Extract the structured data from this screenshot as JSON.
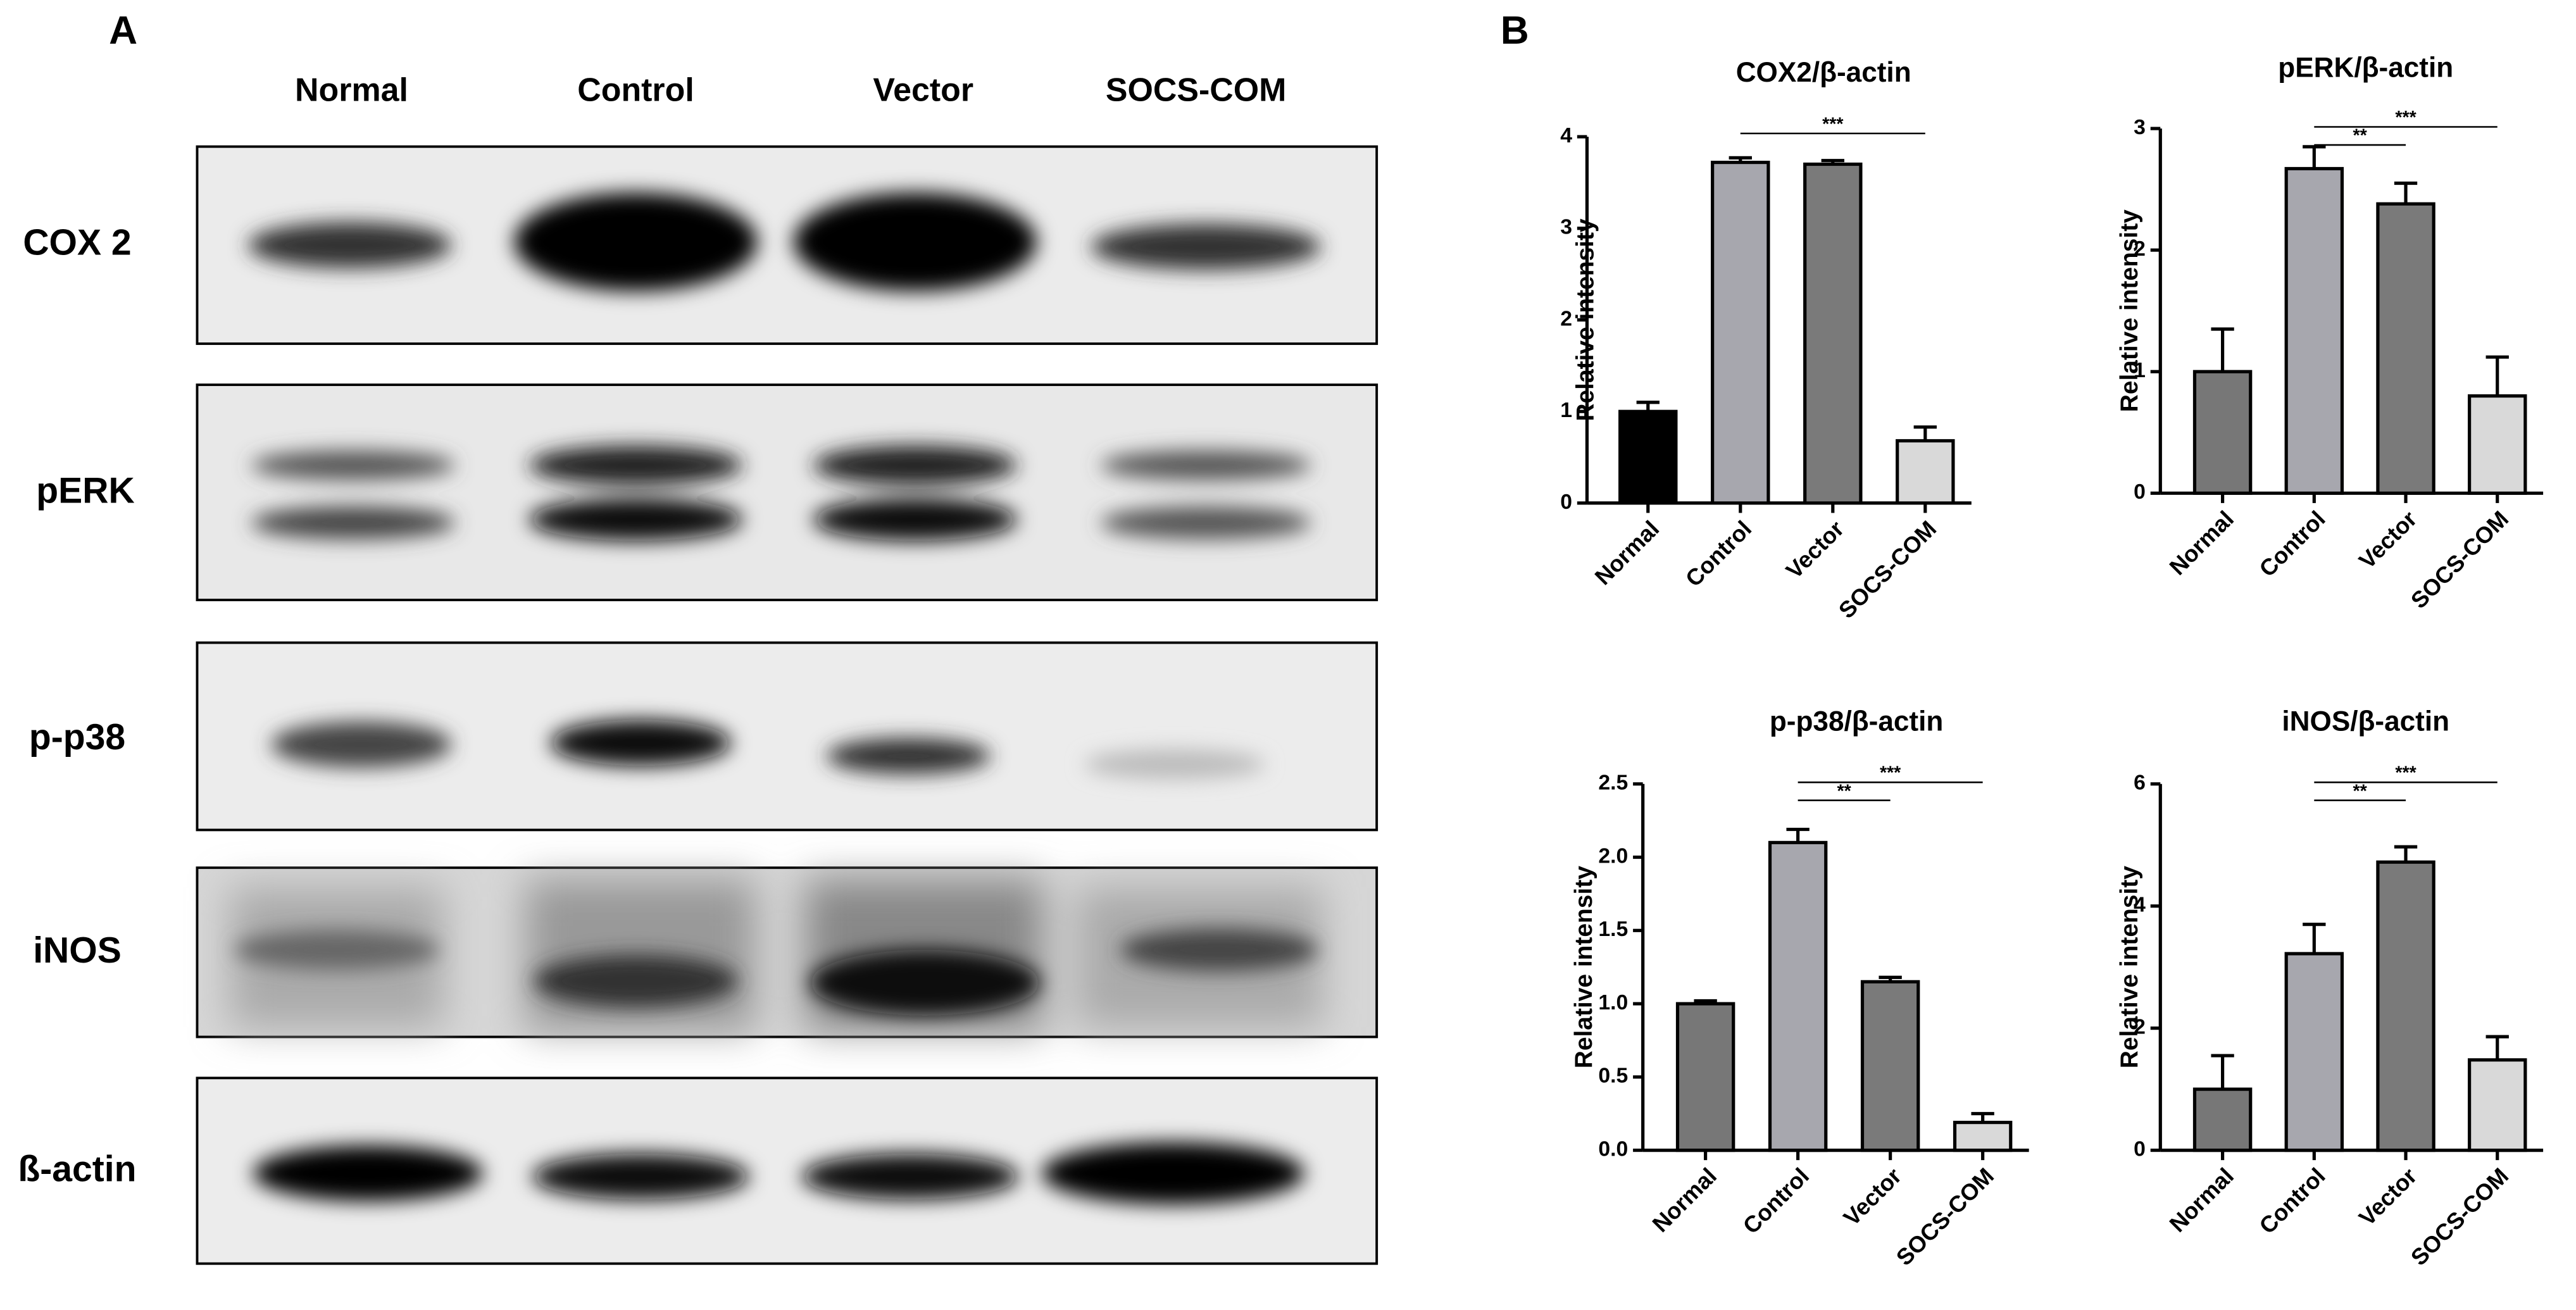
{
  "panel_a": {
    "label": "A",
    "lanes": [
      "Normal",
      "Control",
      "Vector",
      "SOCS-COM"
    ],
    "blots": [
      "COX 2",
      "pERK",
      "p-p38",
      "iNOS",
      "ß-actin"
    ]
  },
  "panel_b": {
    "label": "B"
  },
  "chart_data": [
    {
      "type": "bar",
      "title": "COX2/β-actin",
      "y_label": "Relative intensity",
      "categories": [
        "Normal",
        "Control",
        "Vector",
        "SOCS-COM"
      ],
      "values": [
        1.0,
        3.72,
        3.7,
        0.68
      ],
      "errors": [
        0.1,
        0.05,
        0.04,
        0.15
      ],
      "colors": [
        "#000000",
        "#a7a7ae",
        "#7a7a7a",
        "#d9d9d9"
      ],
      "ylim": [
        0,
        4
      ],
      "yticks": [
        0,
        1,
        2,
        3,
        4
      ],
      "annotations": [
        {
          "text": "***",
          "from": "Control",
          "to": "SOCS-COM"
        }
      ]
    },
    {
      "type": "bar",
      "title": "pERK/β-actin",
      "y_label": "Relative intensity",
      "categories": [
        "Normal",
        "Control",
        "Vector",
        "SOCS-COM"
      ],
      "values": [
        1.0,
        2.67,
        2.38,
        0.8
      ],
      "errors": [
        0.35,
        0.18,
        0.17,
        0.32
      ],
      "colors": [
        "#777777",
        "#a7a7ae",
        "#7a7a7a",
        "#d9d9d9"
      ],
      "ylim": [
        0,
        3
      ],
      "yticks": [
        0,
        1,
        2,
        3
      ],
      "annotations": [
        {
          "text": "**",
          "from": "Control",
          "to": "Vector"
        },
        {
          "text": "***",
          "from": "Control",
          "to": "SOCS-COM"
        }
      ]
    },
    {
      "type": "bar",
      "title": "p-p38/β-actin",
      "y_label": "Relative intensity",
      "categories": [
        "Normal",
        "Control",
        "Vector",
        "SOCS-COM"
      ],
      "values": [
        1.0,
        2.1,
        1.15,
        0.19
      ],
      "errors": [
        0.02,
        0.09,
        0.03,
        0.06
      ],
      "colors": [
        "#777777",
        "#a7a7ae",
        "#7a7a7a",
        "#d9d9d9"
      ],
      "ylim": [
        0,
        2.5
      ],
      "yticks": [
        {
          "value": 0,
          "label": "0.0"
        },
        0.5,
        {
          "value": 1,
          "label": "1.0"
        },
        1.5,
        {
          "value": 2,
          "label": "2.0"
        },
        2.5
      ],
      "annotations": [
        {
          "text": "**",
          "from": "Control",
          "to": "Vector"
        },
        {
          "text": "***",
          "from": "Control",
          "to": "SOCS-COM"
        }
      ]
    },
    {
      "type": "bar",
      "title": "iNOS/β-actin",
      "y_label": "Relative intensity",
      "categories": [
        "Normal",
        "Control",
        "Vector",
        "SOCS-COM"
      ],
      "values": [
        1.0,
        3.22,
        4.72,
        1.48
      ],
      "errors": [
        0.55,
        0.48,
        0.25,
        0.38
      ],
      "colors": [
        "#777777",
        "#a7a7ae",
        "#7a7a7a",
        "#d9d9d9"
      ],
      "ylim": [
        0,
        6
      ],
      "yticks": [
        0,
        2,
        4,
        6
      ],
      "annotations": [
        {
          "text": "**",
          "from": "Control",
          "to": "Vector"
        },
        {
          "text": "***",
          "from": "Control",
          "to": "SOCS-COM"
        }
      ]
    }
  ]
}
